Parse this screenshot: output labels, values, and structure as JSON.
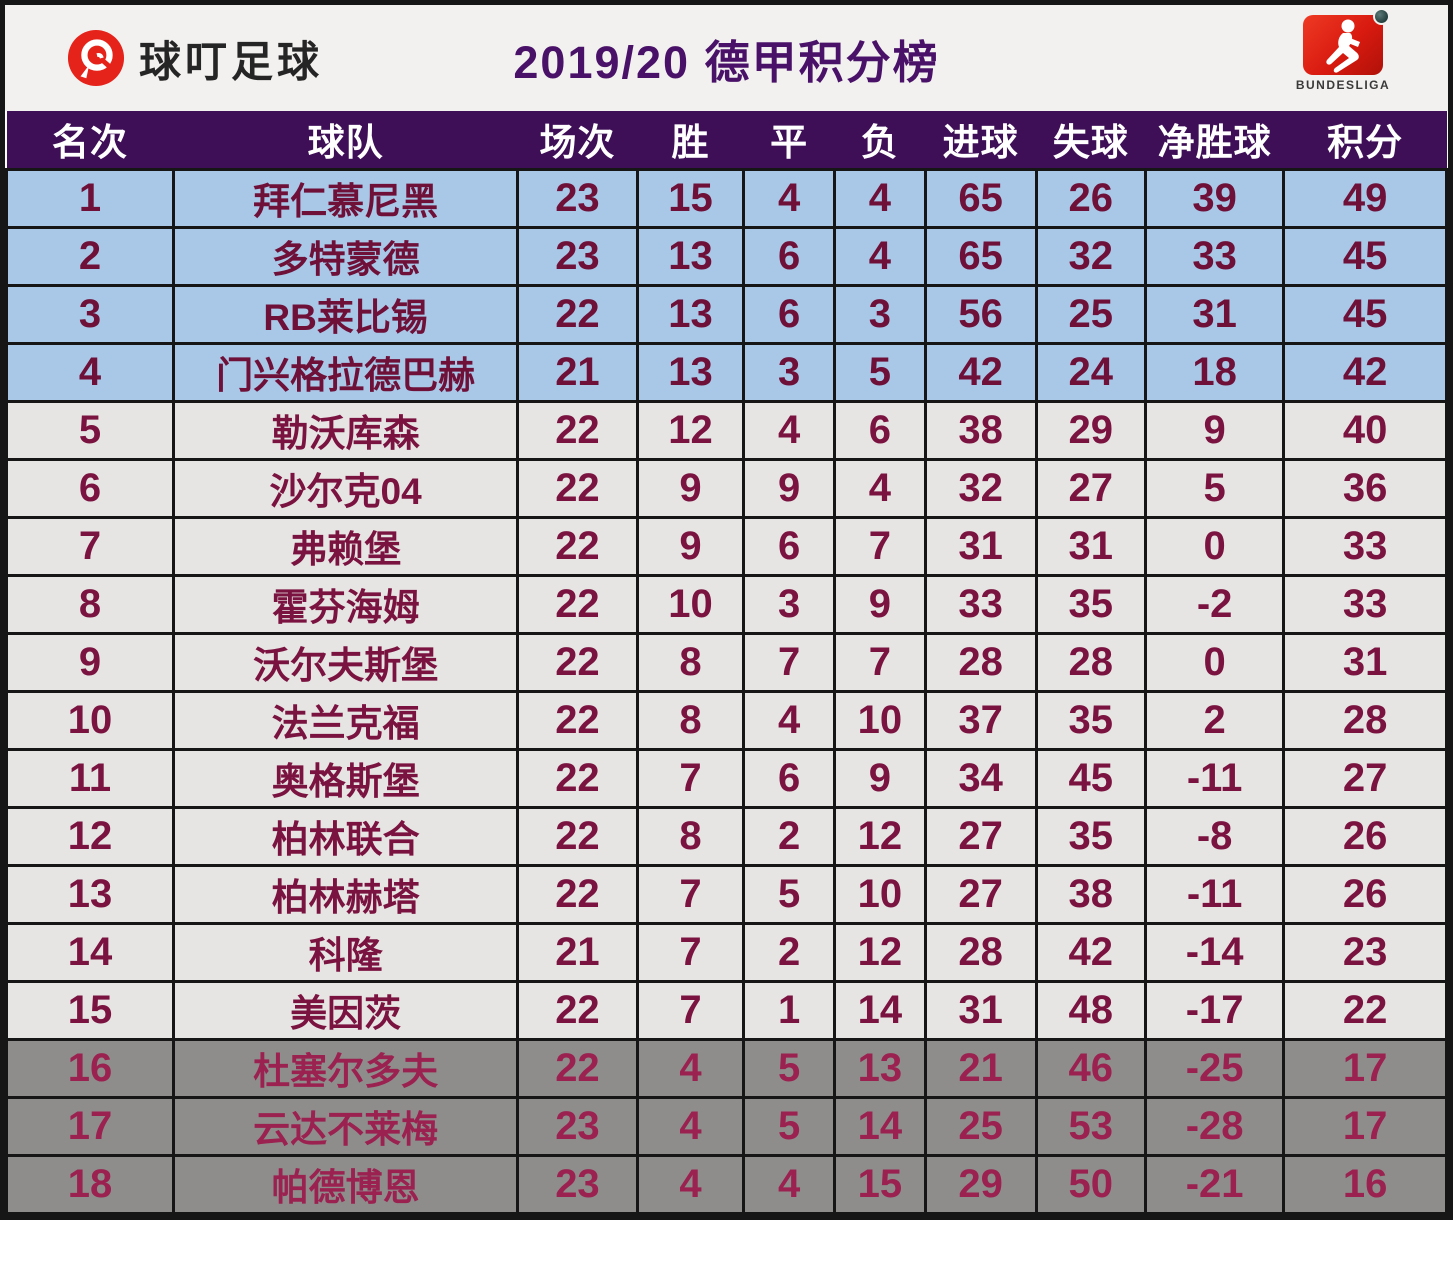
{
  "header": {
    "brand_name": "球叮足球",
    "title": "2019/20 德甲积分榜",
    "league_logo_label": "BUNDESLIGA"
  },
  "colors": {
    "header-bg": "#3e0e57",
    "title-text": "#4a1168",
    "row-blue": "#a9c7e7",
    "row-gray": "#e6e5e3",
    "row-dark": "#8e8d8b",
    "cell-text": "#7b1340",
    "cell-text-cl": "#6e1038",
    "cell-text-rel": "#9b2150",
    "brand-red": "#e5231b",
    "league-red": "#d81a10",
    "grid-black": "#161616",
    "topbar-bg": "#f2f1ef"
  },
  "chart_data": {
    "type": "table",
    "title": "2019/20 德甲积分榜",
    "columns": [
      "名次",
      "球队",
      "场次",
      "胜",
      "平",
      "负",
      "进球",
      "失球",
      "净胜球",
      "积分"
    ],
    "column_keys": [
      "rank",
      "team",
      "played",
      "won",
      "drawn",
      "lost",
      "goals_for",
      "goals_against",
      "goal_diff",
      "points"
    ],
    "row_zones_legend": {
      "cl": "rows 1-4 highlighted light blue",
      "mid": "rows 5-15 light gray",
      "rel": "rows 16-18 dark gray"
    },
    "rows": [
      {
        "rank": 1,
        "team": "拜仁慕尼黑",
        "played": 23,
        "won": 15,
        "drawn": 4,
        "lost": 4,
        "goals_for": 65,
        "goals_against": 26,
        "goal_diff": 39,
        "points": 49,
        "zone": "cl"
      },
      {
        "rank": 2,
        "team": "多特蒙德",
        "played": 23,
        "won": 13,
        "drawn": 6,
        "lost": 4,
        "goals_for": 65,
        "goals_against": 32,
        "goal_diff": 33,
        "points": 45,
        "zone": "cl"
      },
      {
        "rank": 3,
        "team": "RB莱比锡",
        "played": 22,
        "won": 13,
        "drawn": 6,
        "lost": 3,
        "goals_for": 56,
        "goals_against": 25,
        "goal_diff": 31,
        "points": 45,
        "zone": "cl"
      },
      {
        "rank": 4,
        "team": "门兴格拉德巴赫",
        "played": 21,
        "won": 13,
        "drawn": 3,
        "lost": 5,
        "goals_for": 42,
        "goals_against": 24,
        "goal_diff": 18,
        "points": 42,
        "zone": "cl"
      },
      {
        "rank": 5,
        "team": "勒沃库森",
        "played": 22,
        "won": 12,
        "drawn": 4,
        "lost": 6,
        "goals_for": 38,
        "goals_against": 29,
        "goal_diff": 9,
        "points": 40,
        "zone": "mid"
      },
      {
        "rank": 6,
        "team": "沙尔克04",
        "played": 22,
        "won": 9,
        "drawn": 9,
        "lost": 4,
        "goals_for": 32,
        "goals_against": 27,
        "goal_diff": 5,
        "points": 36,
        "zone": "mid"
      },
      {
        "rank": 7,
        "team": "弗赖堡",
        "played": 22,
        "won": 9,
        "drawn": 6,
        "lost": 7,
        "goals_for": 31,
        "goals_against": 31,
        "goal_diff": 0,
        "points": 33,
        "zone": "mid"
      },
      {
        "rank": 8,
        "team": "霍芬海姆",
        "played": 22,
        "won": 10,
        "drawn": 3,
        "lost": 9,
        "goals_for": 33,
        "goals_against": 35,
        "goal_diff": -2,
        "points": 33,
        "zone": "mid"
      },
      {
        "rank": 9,
        "team": "沃尔夫斯堡",
        "played": 22,
        "won": 8,
        "drawn": 7,
        "lost": 7,
        "goals_for": 28,
        "goals_against": 28,
        "goal_diff": 0,
        "points": 31,
        "zone": "mid"
      },
      {
        "rank": 10,
        "team": "法兰克福",
        "played": 22,
        "won": 8,
        "drawn": 4,
        "lost": 10,
        "goals_for": 37,
        "goals_against": 35,
        "goal_diff": 2,
        "points": 28,
        "zone": "mid"
      },
      {
        "rank": 11,
        "team": "奥格斯堡",
        "played": 22,
        "won": 7,
        "drawn": 6,
        "lost": 9,
        "goals_for": 34,
        "goals_against": 45,
        "goal_diff": -11,
        "points": 27,
        "zone": "mid"
      },
      {
        "rank": 12,
        "team": "柏林联合",
        "played": 22,
        "won": 8,
        "drawn": 2,
        "lost": 12,
        "goals_for": 27,
        "goals_against": 35,
        "goal_diff": -8,
        "points": 26,
        "zone": "mid"
      },
      {
        "rank": 13,
        "team": "柏林赫塔",
        "played": 22,
        "won": 7,
        "drawn": 5,
        "lost": 10,
        "goals_for": 27,
        "goals_against": 38,
        "goal_diff": -11,
        "points": 26,
        "zone": "mid"
      },
      {
        "rank": 14,
        "team": "科隆",
        "played": 21,
        "won": 7,
        "drawn": 2,
        "lost": 12,
        "goals_for": 28,
        "goals_against": 42,
        "goal_diff": -14,
        "points": 23,
        "zone": "mid"
      },
      {
        "rank": 15,
        "team": "美因茨",
        "played": 22,
        "won": 7,
        "drawn": 1,
        "lost": 14,
        "goals_for": 31,
        "goals_against": 48,
        "goal_diff": -17,
        "points": 22,
        "zone": "mid"
      },
      {
        "rank": 16,
        "team": "杜塞尔多夫",
        "played": 22,
        "won": 4,
        "drawn": 5,
        "lost": 13,
        "goals_for": 21,
        "goals_against": 46,
        "goal_diff": -25,
        "points": 17,
        "zone": "rel"
      },
      {
        "rank": 17,
        "team": "云达不莱梅",
        "played": 23,
        "won": 4,
        "drawn": 5,
        "lost": 14,
        "goals_for": 25,
        "goals_against": 53,
        "goal_diff": -28,
        "points": 17,
        "zone": "rel"
      },
      {
        "rank": 18,
        "team": "帕德博恩",
        "played": 23,
        "won": 4,
        "drawn": 4,
        "lost": 15,
        "goals_for": 29,
        "goals_against": 50,
        "goal_diff": -21,
        "points": 16,
        "zone": "rel"
      }
    ]
  }
}
